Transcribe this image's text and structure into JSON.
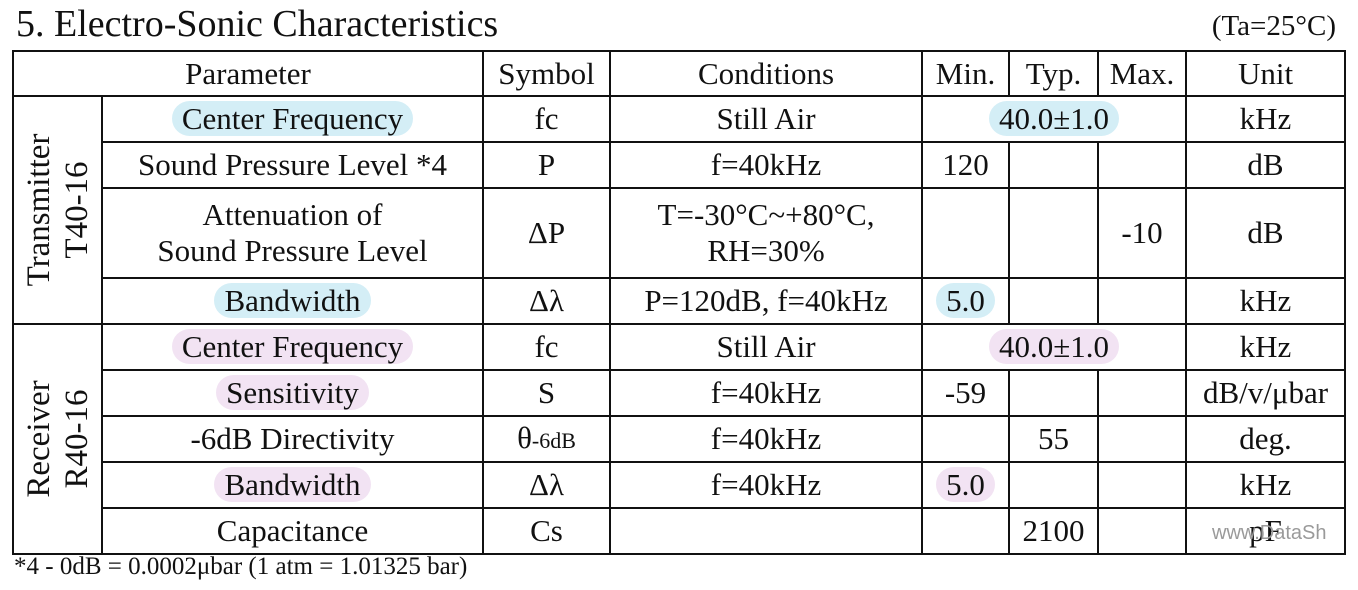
{
  "title": "5. Electro-Sonic Characteristics",
  "test_condition": "(Ta=25°C)",
  "headers": {
    "parameter": "Parameter",
    "symbol": "Symbol",
    "conditions": "Conditions",
    "min": "Min.",
    "typ": "Typ.",
    "max": "Max.",
    "unit": "Unit"
  },
  "groups": {
    "transmitter": {
      "line1": "Transmitter",
      "line2": "T40-16"
    },
    "receiver": {
      "line1": "Receiver",
      "line2": "R40-16"
    }
  },
  "rows": [
    {
      "param": "Center Frequency",
      "symbol": "fc",
      "conditions": "Still Air",
      "typ": "40.0±1.0",
      "unit": "kHz"
    },
    {
      "param": "Sound Pressure Level *4",
      "symbol": "P",
      "conditions": "f=40kHz",
      "min": "120",
      "unit": "dB"
    },
    {
      "param_line1": "Attenuation of",
      "param_line2": "Sound Pressure Level",
      "symbol": "ΔP",
      "conditions_line1": "T=-30°C~+80°C,",
      "conditions_line2": "RH=30%",
      "max": "-10",
      "unit": "dB"
    },
    {
      "param": "Bandwidth",
      "symbol": "Δλ",
      "conditions": "P=120dB, f=40kHz",
      "min": "5.0",
      "unit": "kHz"
    },
    {
      "param": "Center Frequency",
      "symbol": "fc",
      "conditions": "Still Air",
      "typ": "40.0±1.0",
      "unit": "kHz"
    },
    {
      "param": "Sensitivity",
      "symbol": "S",
      "conditions": "f=40kHz",
      "min": "-59",
      "unit": "dB/v/μbar"
    },
    {
      "param": "-6dB Directivity",
      "symbol": "θ",
      "symbol_sub": "-6dB",
      "conditions": "f=40kHz",
      "typ": "55",
      "unit": "deg."
    },
    {
      "param": "Bandwidth",
      "symbol": "Δλ",
      "conditions": "f=40kHz",
      "min": "5.0",
      "unit": "kHz"
    },
    {
      "param": "Capacitance",
      "symbol": "Cs",
      "conditions": "",
      "typ": "2100",
      "unit": "pF"
    }
  ],
  "footnote": "*4 - 0dB = 0.0002μbar (1 atm = 1.01325 bar)",
  "watermark": "www.DataSh",
  "colors": {
    "highlight_transmitter": "#d4eef6",
    "highlight_receiver": "#f2e3f3"
  }
}
